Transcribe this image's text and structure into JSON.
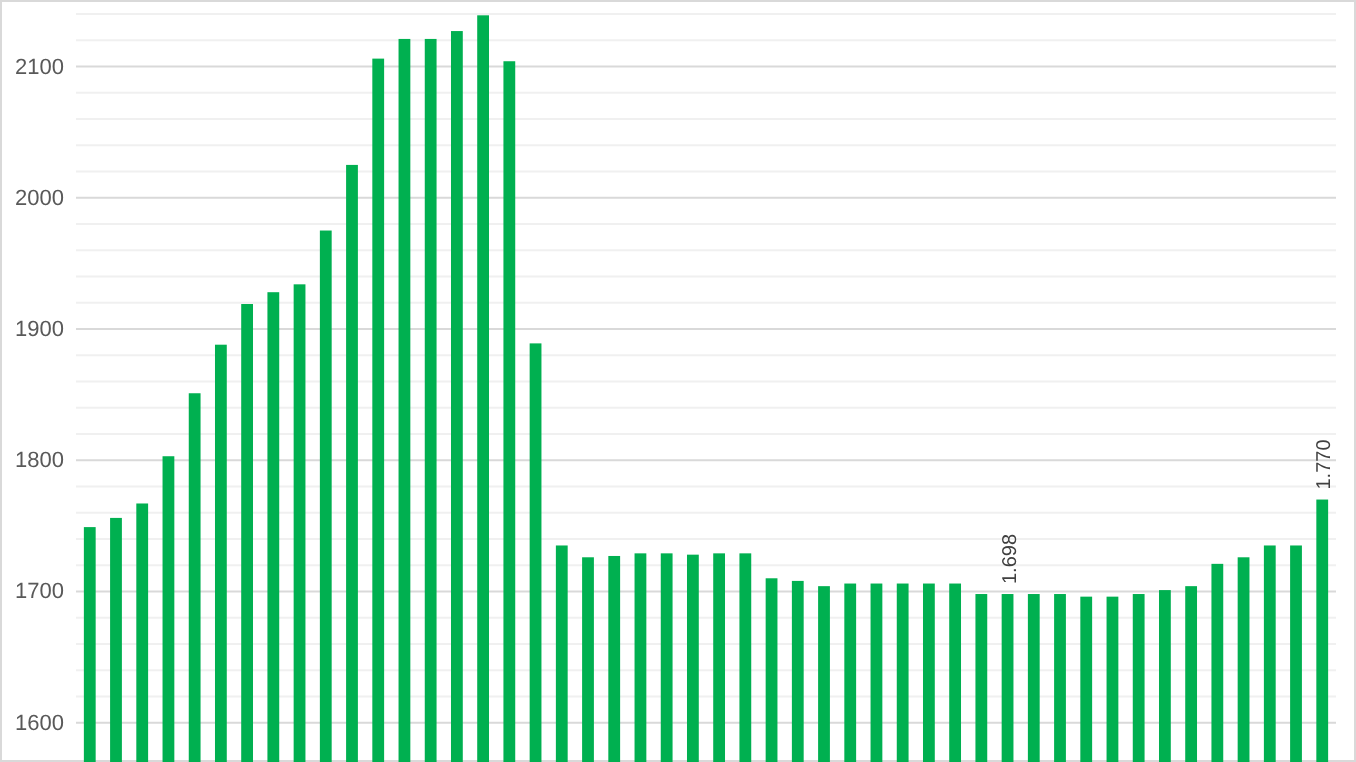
{
  "chart_data": {
    "type": "bar",
    "categories": [
      null,
      null,
      null,
      null,
      null,
      null,
      null,
      null,
      null,
      null,
      null,
      null,
      null,
      null,
      null,
      null,
      null,
      null,
      null,
      null,
      null,
      null,
      null,
      null,
      null,
      null,
      null,
      null,
      null,
      null,
      null,
      null,
      null,
      null,
      null,
      null,
      null,
      null,
      null,
      null,
      null,
      null,
      null,
      null,
      null,
      null,
      null,
      null
    ],
    "values": [
      1749,
      1756,
      1767,
      1803,
      1851,
      1888,
      1919,
      1928,
      1934,
      1975,
      2025,
      2106,
      2121,
      2121,
      2127,
      2139,
      2104,
      1889,
      1735,
      1726,
      1727,
      1729,
      1729,
      1728,
      1729,
      1729,
      1710,
      1708,
      1704,
      1706,
      1706,
      1706,
      1706,
      1706,
      1698,
      1698,
      1698,
      1698,
      1696,
      1696,
      1698,
      1701,
      1704,
      1721,
      1726,
      1735,
      1735,
      1770
    ],
    "value_labels": [
      null,
      null,
      null,
      null,
      null,
      null,
      null,
      null,
      null,
      null,
      null,
      null,
      null,
      null,
      null,
      null,
      null,
      null,
      null,
      null,
      null,
      null,
      null,
      null,
      null,
      null,
      null,
      null,
      null,
      null,
      null,
      null,
      null,
      null,
      null,
      "1.698",
      null,
      null,
      null,
      null,
      null,
      null,
      null,
      null,
      null,
      null,
      null,
      "1.770"
    ],
    "color": "#00b050",
    "ylim": [
      1570,
      2140
    ],
    "yticks": [
      1600,
      {
        "value": 1620,
        "label": null
      },
      {
        "value": 1640,
        "label": null
      },
      {
        "value": 1660,
        "label": null
      },
      {
        "value": 1680,
        "label": null
      },
      1700,
      {
        "value": 1720,
        "label": null
      },
      {
        "value": 1740,
        "label": null
      },
      {
        "value": 1760,
        "label": null
      },
      {
        "value": 1780,
        "label": null
      },
      1800,
      {
        "value": 1820,
        "label": null
      },
      {
        "value": 1840,
        "label": null
      },
      {
        "value": 1860,
        "label": null
      },
      {
        "value": 1880,
        "label": null
      },
      1900,
      {
        "value": 1920,
        "label": null
      },
      {
        "value": 1940,
        "label": null
      },
      {
        "value": 1960,
        "label": null
      },
      {
        "value": 1980,
        "label": null
      },
      2000,
      {
        "value": 2020,
        "label": null
      },
      {
        "value": 2040,
        "label": null
      },
      {
        "value": 2060,
        "label": null
      },
      {
        "value": 2080,
        "label": null
      },
      2100,
      {
        "value": 2120,
        "label": null
      },
      {
        "value": 2140,
        "label": null
      }
    ],
    "grid": "y"
  }
}
